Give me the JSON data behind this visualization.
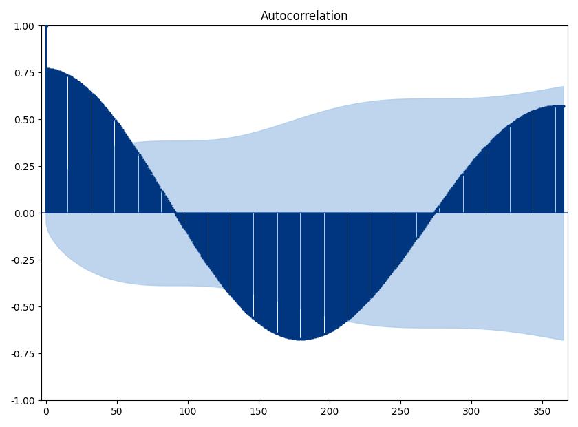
{
  "title": "Autocorrelation",
  "nlags": 365,
  "period": 365,
  "ylim": [
    -1.0,
    1.0
  ],
  "xlim": [
    -3,
    368
  ],
  "bar_color": "#003580",
  "conf_color": "#a8c8e8",
  "conf_alpha": 0.75,
  "hline_color": "#3060b0",
  "hline_lw": 1.2,
  "title_fontsize": 12,
  "yticks": [
    -1.0,
    -0.75,
    -0.5,
    -0.25,
    0.0,
    0.25,
    0.5,
    0.75,
    1.0
  ],
  "xticks": [
    0,
    50,
    100,
    150,
    200,
    250,
    300,
    350
  ],
  "n_obs": 365,
  "acf_amplitude": 0.62,
  "acf_phase_shift": 5
}
